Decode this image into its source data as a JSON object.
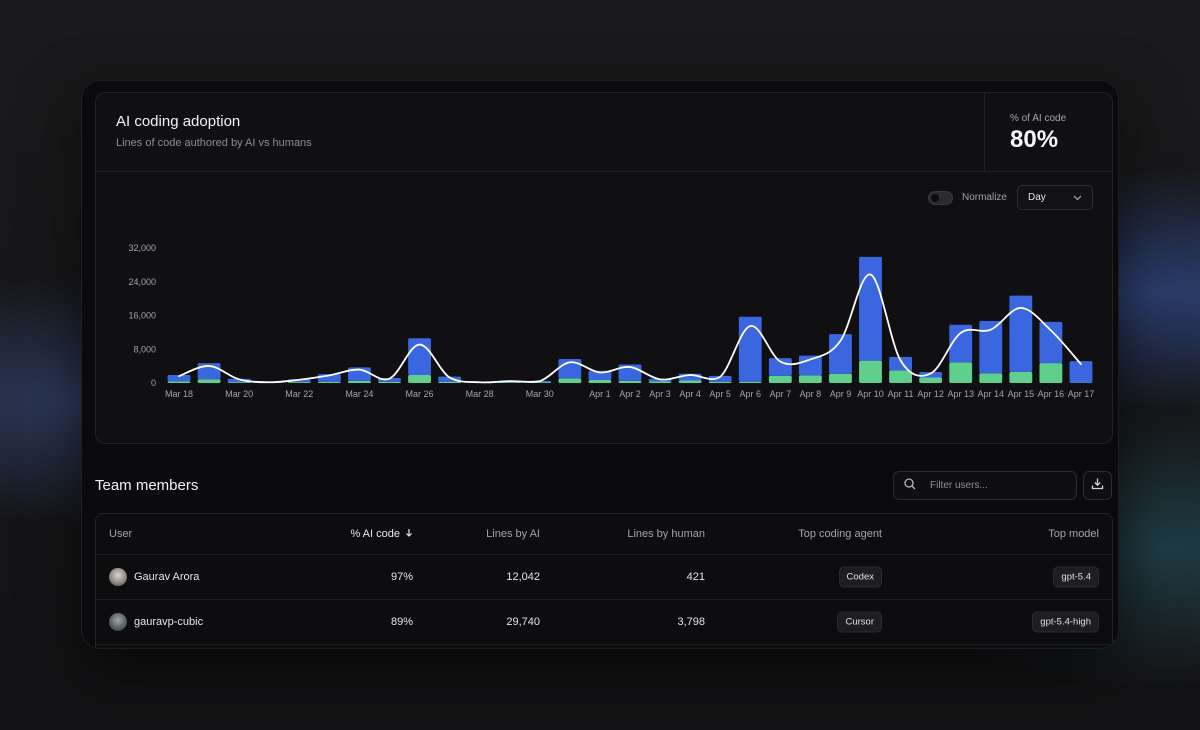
{
  "card": {
    "title": "AI coding adoption",
    "subtitle": "Lines of code authored by AI vs humans",
    "kpi_label": "% of AI code",
    "kpi_value": "80%"
  },
  "controls": {
    "normalize_label": "Normalize",
    "normalize_on": false,
    "granularity": "Day"
  },
  "chart_data": {
    "type": "bar",
    "stacked": true,
    "categories": [
      "Mar 18",
      "Mar 19",
      "Mar 20",
      "Mar 21",
      "Mar 22",
      "Mar 23",
      "Mar 24",
      "Mar 25",
      "Mar 26",
      "Mar 27",
      "Mar 28",
      "Mar 29",
      "Mar 30",
      "Mar 31",
      "Apr 1",
      "Apr 2",
      "Apr 3",
      "Apr 4",
      "Apr 5",
      "Apr 6",
      "Apr 7",
      "Apr 8",
      "Apr 9",
      "Apr 10",
      "Apr 11",
      "Apr 12",
      "Apr 13",
      "Apr 14",
      "Apr 15",
      "Apr 16",
      "Apr 17"
    ],
    "tick_labels": [
      "Mar 18",
      "",
      "Mar 20",
      "",
      "Mar 22",
      "",
      "Mar 24",
      "",
      "Mar 26",
      "",
      "Mar 28",
      "",
      "Mar 30",
      "",
      "Apr 1",
      "Apr 2",
      "Apr 3",
      "Apr 4",
      "Apr 5",
      "Apr 6",
      "Apr 7",
      "Apr 8",
      "Apr 9",
      "Apr 10",
      "Apr 11",
      "Apr 12",
      "Apr 13",
      "Apr 14",
      "Apr 15",
      "Apr 16",
      "Apr 17"
    ],
    "series": [
      {
        "color": "#5ecf8c",
        "values": [
          400,
          900,
          200,
          100,
          200,
          300,
          500,
          300,
          1900,
          300,
          100,
          100,
          200,
          1100,
          700,
          500,
          400,
          600,
          300,
          300,
          1700,
          1800,
          2200,
          5300,
          3000,
          1300,
          4900,
          2300,
          2600,
          4700,
          100
        ]
      },
      {
        "color": "#3a66e0",
        "values": [
          1500,
          3800,
          800,
          100,
          700,
          1800,
          3200,
          900,
          8700,
          1200,
          100,
          400,
          300,
          4600,
          2200,
          3900,
          600,
          1600,
          1400,
          15400,
          4200,
          4700,
          9400,
          24600,
          3200,
          1300,
          8900,
          12400,
          18100,
          9800,
          5100
        ]
      }
    ],
    "trend_color": "#ffffff",
    "ylim": [
      0,
      32000
    ],
    "yticks": [
      "0",
      "8,000",
      "16,000",
      "24,000",
      "32,000"
    ]
  },
  "team": {
    "title": "Team members",
    "search_placeholder": "Filter users...",
    "columns": {
      "user": "User",
      "ai_pct": "% AI code",
      "lines_ai": "Lines by AI",
      "lines_human": "Lines by human",
      "agent": "Top coding agent",
      "model": "Top model"
    },
    "rows": [
      {
        "name": "Gaurav Arora",
        "ai_pct": "97%",
        "lines_ai": "12,042",
        "lines_human": "421",
        "agent": "Codex",
        "model": "gpt-5.4"
      },
      {
        "name": "gauravp-cubic",
        "ai_pct": "89%",
        "lines_ai": "29,740",
        "lines_human": "3,798",
        "agent": "Cursor",
        "model": "gpt-5.4-high"
      }
    ]
  }
}
